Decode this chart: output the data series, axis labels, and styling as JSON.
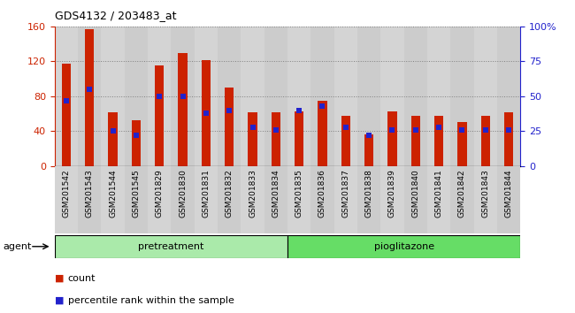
{
  "title": "GDS4132 / 203483_at",
  "samples": [
    "GSM201542",
    "GSM201543",
    "GSM201544",
    "GSM201545",
    "GSM201829",
    "GSM201830",
    "GSM201831",
    "GSM201832",
    "GSM201833",
    "GSM201834",
    "GSM201835",
    "GSM201836",
    "GSM201837",
    "GSM201838",
    "GSM201839",
    "GSM201840",
    "GSM201841",
    "GSM201842",
    "GSM201843",
    "GSM201844"
  ],
  "counts": [
    117,
    157,
    62,
    52,
    115,
    130,
    121,
    90,
    62,
    62,
    63,
    75,
    57,
    36,
    63,
    57,
    57,
    50,
    58,
    62
  ],
  "percentiles": [
    47,
    55,
    25,
    22,
    50,
    50,
    38,
    40,
    28,
    26,
    40,
    43,
    28,
    22,
    26,
    26,
    28,
    26,
    26,
    26
  ],
  "group1_label": "pretreatment",
  "group1_count": 10,
  "group2_label": "pioglitazone",
  "group2_count": 10,
  "agent_label": "agent",
  "bar_color": "#cc2200",
  "dot_color": "#2222cc",
  "left_axis_color": "#cc2200",
  "right_axis_color": "#2222cc",
  "ylim_left": [
    0,
    160
  ],
  "ylim_right": [
    0,
    100
  ],
  "left_yticks": [
    0,
    40,
    80,
    120,
    160
  ],
  "right_yticks": [
    0,
    25,
    50,
    75,
    100
  ],
  "right_yticklabels": [
    "0",
    "25",
    "50",
    "75",
    "100%"
  ],
  "col_bg_odd": "#d4d4d4",
  "col_bg_even": "#cccccc",
  "group1_bg": "#aaeaaa",
  "group2_bg": "#66dd66",
  "legend_count_label": "count",
  "legend_pct_label": "percentile rank within the sample"
}
